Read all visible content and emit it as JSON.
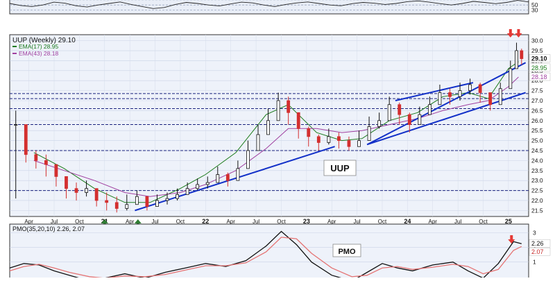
{
  "chart_data": [
    {
      "type": "line",
      "panel": "RSI",
      "y_ticks": [
        "30",
        "50"
      ],
      "ylim": [
        15,
        75
      ],
      "grid": true,
      "reference_levels": [
        30,
        50,
        70
      ],
      "series": [
        {
          "values": [
            56,
            48,
            44,
            50,
            61,
            57,
            47,
            42,
            50,
            56,
            62,
            52,
            44,
            36,
            40,
            52,
            60,
            56,
            50,
            46,
            54,
            61,
            58,
            50,
            44,
            52,
            58,
            62,
            56,
            50,
            47,
            55,
            60,
            57,
            52,
            56,
            63,
            66,
            61,
            55,
            50,
            56,
            64,
            60,
            55,
            60,
            68,
            62
          ],
          "color": "#222222"
        }
      ]
    },
    {
      "type": "candlestick",
      "panel": "price",
      "title": "UUP (Weekly) 29.10",
      "series": [
        {
          "name": "EMA(17) 28.95",
          "color": "#1a7a1a",
          "x": [
            2020.3,
            2020.6,
            2020.9,
            2021.2,
            2021.45,
            2021.75,
            2022.0,
            2022.3,
            2022.6,
            2022.82,
            2023.1,
            2023.35,
            2023.55,
            2023.82,
            2024.1,
            2024.35,
            2024.6,
            2024.8,
            2025.0,
            2025.1
          ],
          "values": [
            24.4,
            23.6,
            22.6,
            21.9,
            21.9,
            22.6,
            23.3,
            24.4,
            26.3,
            26.8,
            25.4,
            25.0,
            25.1,
            26.0,
            26.4,
            27.2,
            27.4,
            27.1,
            28.6,
            28.95
          ]
        },
        {
          "name": "EMA(43) 28.18",
          "color": "#a040a0",
          "x": [
            2020.3,
            2020.6,
            2020.9,
            2021.2,
            2021.45,
            2021.75,
            2022.0,
            2022.3,
            2022.6,
            2022.82,
            2023.1,
            2023.35,
            2023.55,
            2023.82,
            2024.1,
            2024.35,
            2024.6,
            2024.8,
            2025.0,
            2025.1
          ],
          "values": [
            24.0,
            23.5,
            23.0,
            22.4,
            22.2,
            22.4,
            22.8,
            23.5,
            24.6,
            25.6,
            25.6,
            25.4,
            25.5,
            25.8,
            26.1,
            26.5,
            26.8,
            27.0,
            27.7,
            28.18
          ]
        }
      ],
      "ohlc": {
        "x": [
          2020.12,
          2020.22,
          2020.32,
          2020.42,
          2020.52,
          2020.62,
          2020.72,
          2020.82,
          2020.92,
          2021.02,
          2021.12,
          2021.22,
          2021.32,
          2021.42,
          2021.52,
          2021.62,
          2021.72,
          2021.82,
          2021.92,
          2022.02,
          2022.12,
          2022.22,
          2022.32,
          2022.42,
          2022.52,
          2022.62,
          2022.72,
          2022.82,
          2022.92,
          2023.02,
          2023.12,
          2023.22,
          2023.32,
          2023.42,
          2023.52,
          2023.62,
          2023.72,
          2023.82,
          2023.92,
          2024.02,
          2024.12,
          2024.22,
          2024.32,
          2024.42,
          2024.52,
          2024.62,
          2024.72,
          2024.82,
          2024.92,
          2025.02,
          2025.08,
          2025.13
        ],
        "close": [
          25.8,
          24.3,
          24.0,
          23.8,
          23.2,
          22.6,
          22.4,
          22.6,
          22.0,
          21.9,
          21.6,
          21.8,
          22.2,
          21.7,
          22.0,
          22.1,
          22.3,
          22.6,
          22.8,
          22.9,
          23.3,
          23.0,
          23.6,
          24.5,
          25.3,
          26.0,
          27.0,
          26.4,
          25.6,
          25.2,
          24.9,
          25.2,
          25.0,
          24.7,
          25.0,
          25.7,
          26.0,
          26.8,
          26.3,
          25.8,
          26.3,
          26.8,
          27.4,
          27.2,
          27.5,
          27.8,
          27.4,
          26.8,
          27.6,
          28.6,
          29.5,
          29.1
        ],
        "high": [
          26.5,
          25.2,
          24.5,
          24.3,
          23.8,
          23.0,
          22.9,
          23.0,
          22.6,
          22.4,
          22.2,
          22.3,
          22.5,
          22.1,
          22.3,
          22.4,
          22.6,
          22.9,
          23.1,
          23.2,
          23.7,
          23.4,
          24.0,
          25.0,
          25.8,
          26.6,
          27.4,
          27.2,
          26.2,
          25.7,
          25.3,
          25.6,
          25.4,
          25.2,
          25.5,
          26.2,
          26.4,
          27.2,
          26.9,
          26.4,
          26.7,
          27.2,
          27.8,
          27.6,
          27.9,
          28.1,
          27.9,
          27.3,
          27.9,
          29.0,
          29.9,
          29.6
        ],
        "low": [
          22.1,
          23.9,
          23.6,
          23.2,
          22.7,
          22.1,
          22.0,
          22.2,
          21.7,
          21.5,
          21.4,
          21.5,
          21.8,
          21.5,
          21.7,
          21.8,
          22.0,
          22.3,
          22.5,
          22.6,
          22.9,
          22.7,
          23.1,
          23.9,
          24.7,
          25.4,
          26.3,
          25.8,
          25.1,
          24.7,
          24.5,
          24.8,
          24.6,
          24.5,
          24.7,
          25.2,
          25.6,
          26.2,
          25.8,
          25.4,
          25.9,
          26.3,
          26.9,
          26.8,
          27.0,
          27.3,
          26.9,
          26.5,
          27.1,
          28.0,
          28.9,
          28.8
        ]
      },
      "annotations": [
        "UUP"
      ],
      "xlabel": "",
      "ylabel": "",
      "x_ticks": [
        "Apr",
        "Jul",
        "Oct",
        "21",
        "Apr",
        "Jul",
        "Oct",
        "22",
        "Apr",
        "Jul",
        "Oct",
        "23",
        "Apr",
        "Jul",
        "Oct",
        "24",
        "Apr",
        "Jul",
        "Oct",
        "25"
      ],
      "y_ticks": [
        "21.5",
        "22.0",
        "22.5",
        "23.0",
        "23.5",
        "24.0",
        "24.5",
        "25.0",
        "25.5",
        "26.0",
        "26.5",
        "27.0",
        "27.5",
        "28.0",
        "28.5",
        "29.0",
        "29.5",
        "30.0"
      ],
      "last_value_labels": [
        "29.10",
        "28.95",
        "28.18"
      ],
      "ylim": [
        21.2,
        30.3
      ],
      "xlim": [
        2020.06,
        2025.2
      ],
      "grid": true,
      "horizontal_levels": [
        22.5,
        24.5,
        25.8,
        26.6,
        27.1,
        27.35
      ],
      "trendlines": [
        {
          "x": [
            2021.3,
            2023.28
          ],
          "y": [
            21.5,
            24.7
          ]
        },
        {
          "x": [
            2023.6,
            2025.17
          ],
          "y": [
            24.8,
            28.9
          ]
        },
        {
          "x": [
            2023.88,
            2024.65
          ],
          "y": [
            27.0,
            27.9
          ]
        },
        {
          "x": [
            2023.6,
            2025.17
          ],
          "y": [
            24.8,
            27.4
          ]
        }
      ],
      "signal_arrows": [
        {
          "x": 2021.0,
          "direction": "up",
          "color": "#2e7d32"
        },
        {
          "x": 2021.33,
          "direction": "up",
          "color": "#2e7d32"
        },
        {
          "x": 2025.02,
          "direction": "down",
          "color": "#e53935"
        },
        {
          "x": 2025.1,
          "direction": "down",
          "color": "#e53935"
        }
      ]
    },
    {
      "type": "line",
      "panel": "PMO",
      "title": "PMO(35,20,10) 2.26, 2.07",
      "annotations": [
        "PMO"
      ],
      "y_ticks": [
        "3",
        "2",
        "1"
      ],
      "last_value_labels": [
        "2.26",
        "2.07"
      ],
      "ylim": [
        -0.2,
        3.6
      ],
      "grid": true,
      "series": [
        {
          "color": "#111111",
          "x": [
            2020.06,
            2020.2,
            2020.35,
            2020.5,
            2020.65,
            2020.85,
            2021.0,
            2021.2,
            2021.4,
            2021.6,
            2021.8,
            2022.0,
            2022.2,
            2022.4,
            2022.6,
            2022.75,
            2022.9,
            2023.05,
            2023.25,
            2023.45,
            2023.6,
            2023.75,
            2023.9,
            2024.05,
            2024.25,
            2024.45,
            2024.6,
            2024.75,
            2024.9,
            2025.05,
            2025.13
          ],
          "values": [
            0.6,
            0.9,
            0.8,
            0.4,
            0.1,
            -0.3,
            -0.1,
            0.2,
            -0.1,
            0.3,
            0.6,
            0.9,
            0.7,
            1.1,
            2.1,
            3.1,
            2.2,
            1.0,
            0.1,
            -0.3,
            0.3,
            0.9,
            0.6,
            0.4,
            0.8,
            1.0,
            0.4,
            -0.1,
            0.9,
            2.4,
            2.26
          ]
        },
        {
          "color": "#e57373",
          "x": [
            2020.06,
            2020.2,
            2020.35,
            2020.5,
            2020.65,
            2020.85,
            2021.0,
            2021.2,
            2021.4,
            2021.6,
            2021.8,
            2022.0,
            2022.2,
            2022.4,
            2022.6,
            2022.75,
            2022.9,
            2023.05,
            2023.25,
            2023.45,
            2023.6,
            2023.75,
            2023.9,
            2024.05,
            2024.25,
            2024.45,
            2024.6,
            2024.75,
            2024.9,
            2025.05,
            2025.13
          ],
          "values": [
            0.4,
            0.7,
            0.85,
            0.6,
            0.3,
            0.0,
            -0.1,
            0.05,
            0.0,
            0.15,
            0.45,
            0.75,
            0.75,
            0.95,
            1.7,
            2.7,
            2.6,
            1.6,
            0.6,
            0.0,
            0.1,
            0.6,
            0.7,
            0.5,
            0.65,
            0.85,
            0.7,
            0.2,
            0.5,
            1.8,
            2.07
          ]
        }
      ],
      "signal_arrows": [
        {
          "x": 2025.03,
          "direction": "down",
          "color": "#e53935"
        }
      ]
    }
  ]
}
